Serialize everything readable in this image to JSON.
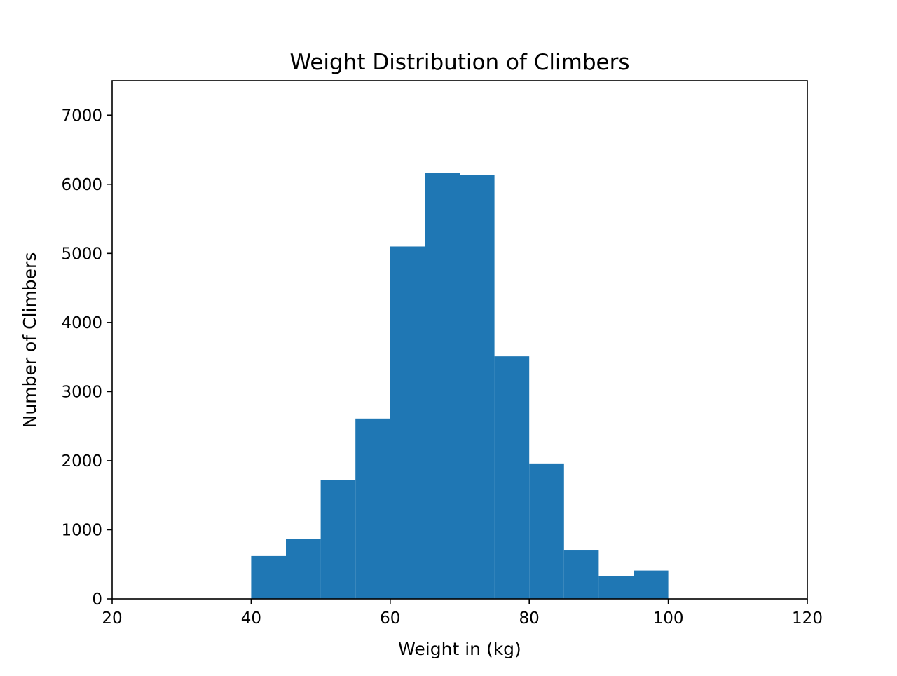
{
  "chart_data": {
    "type": "bar",
    "subtype": "histogram",
    "title": "Weight Distribution of Climbers",
    "xlabel": "Weight in (kg)",
    "ylabel": "Number of Climbers",
    "xlim": [
      20,
      120
    ],
    "ylim": [
      0,
      7500
    ],
    "xticks": [
      20,
      40,
      60,
      80,
      100,
      120
    ],
    "yticks": [
      0,
      1000,
      2000,
      3000,
      4000,
      5000,
      6000,
      7000
    ],
    "grid": false,
    "legend": "none",
    "bar_color": "#1f77b4",
    "bins": [
      {
        "x0": 40,
        "x1": 45,
        "count": 620
      },
      {
        "x0": 45,
        "x1": 50,
        "count": 870
      },
      {
        "x0": 50,
        "x1": 55,
        "count": 1720
      },
      {
        "x0": 55,
        "x1": 60,
        "count": 2610
      },
      {
        "x0": 60,
        "x1": 65,
        "count": 5100
      },
      {
        "x0": 65,
        "x1": 70,
        "count": 6170
      },
      {
        "x0": 70,
        "x1": 75,
        "count": 6140
      },
      {
        "x0": 75,
        "x1": 80,
        "count": 3510
      },
      {
        "x0": 80,
        "x1": 85,
        "count": 1960
      },
      {
        "x0": 85,
        "x1": 90,
        "count": 700
      },
      {
        "x0": 90,
        "x1": 95,
        "count": 330
      },
      {
        "x0": 95,
        "x1": 100,
        "count": 410
      }
    ]
  }
}
